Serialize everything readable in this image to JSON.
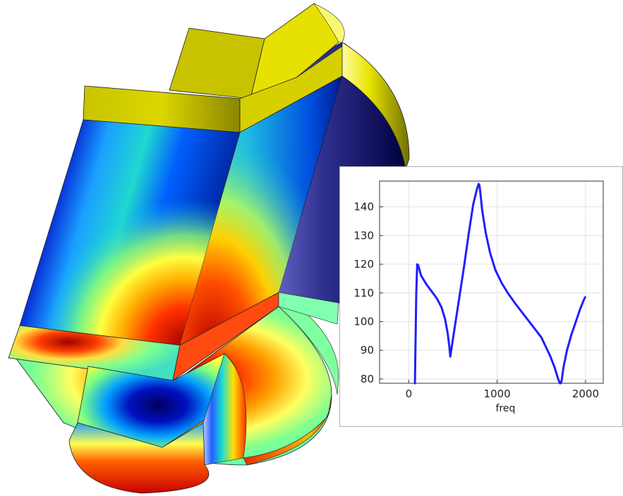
{
  "scene": {
    "description_colors": {
      "yellow_top": "#d8d200",
      "colormap": [
        "#00007f",
        "#0000ff",
        "#00bfff",
        "#7fff7f",
        "#ffff00",
        "#ff7f00",
        "#ff0000",
        "#7f0000"
      ]
    }
  },
  "chart_data": {
    "type": "line",
    "xlabel": "freq",
    "ylabel": "",
    "xlim": [
      -330,
      2200
    ],
    "ylim": [
      78.5,
      149
    ],
    "xticks": [
      0,
      1000,
      2000
    ],
    "yticks": [
      80,
      90,
      100,
      110,
      120,
      130,
      140
    ],
    "grid": true,
    "line_color": "#1f1fff",
    "series": [
      {
        "x": [
          70,
          85,
          95,
          105,
          140,
          200,
          260,
          320,
          370,
          410,
          440,
          460,
          470,
          500,
          560,
          620,
          680,
          730,
          770,
          790,
          800,
          810,
          830,
          870,
          920,
          980,
          1050,
          1120,
          1200,
          1300,
          1400,
          1500,
          1600,
          1650,
          1690,
          1710,
          1720,
          1730,
          1750,
          1790,
          1840,
          1890,
          1940,
          1980,
          1995
        ],
        "y": [
          78.5,
          110,
          120,
          119.8,
          116,
          113,
          110.5,
          108,
          105,
          101,
          96,
          91,
          87.8,
          94,
          106,
          118,
          131,
          141,
          146,
          148,
          147.5,
          145,
          139,
          131,
          124,
          118,
          113.5,
          110,
          106.5,
          102.5,
          98.5,
          94.5,
          88,
          84,
          80,
          78.5,
          78.5,
          79.5,
          84,
          90,
          95.5,
          100,
          104.5,
          107.5,
          108.5
        ]
      }
    ]
  }
}
